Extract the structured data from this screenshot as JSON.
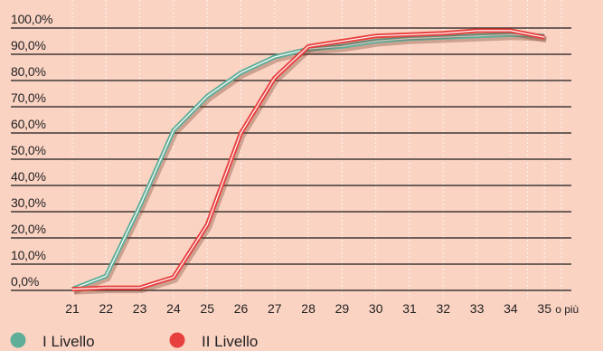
{
  "chart_data": {
    "type": "line",
    "x": [
      "21",
      "22",
      "23",
      "24",
      "25",
      "26",
      "27",
      "28",
      "29",
      "30",
      "31",
      "32",
      "33",
      "34",
      "35"
    ],
    "x_last_suffix": "o più",
    "ytick_labels": [
      "0,0%",
      "10,0%",
      "20,0%",
      "30,0%",
      "40,0%",
      "50,0%",
      "60,0%",
      "70,0%",
      "80,0%",
      "90,0%",
      "100,0%"
    ],
    "ylim": [
      0,
      100
    ],
    "grid": true,
    "legend_position": "bottom-left",
    "series": [
      {
        "name": "I Livello",
        "color": "#5fae98",
        "values": [
          0.5,
          5.5,
          32,
          61,
          74,
          83,
          89,
          92,
          93,
          95,
          96,
          96.5,
          97,
          97.5,
          97
        ]
      },
      {
        "name": "II Livello",
        "color": "#e8403e",
        "values": [
          0.5,
          1,
          1,
          5,
          25,
          60,
          81,
          93,
          95,
          97,
          97.5,
          98,
          99,
          99,
          96.5
        ]
      }
    ]
  }
}
